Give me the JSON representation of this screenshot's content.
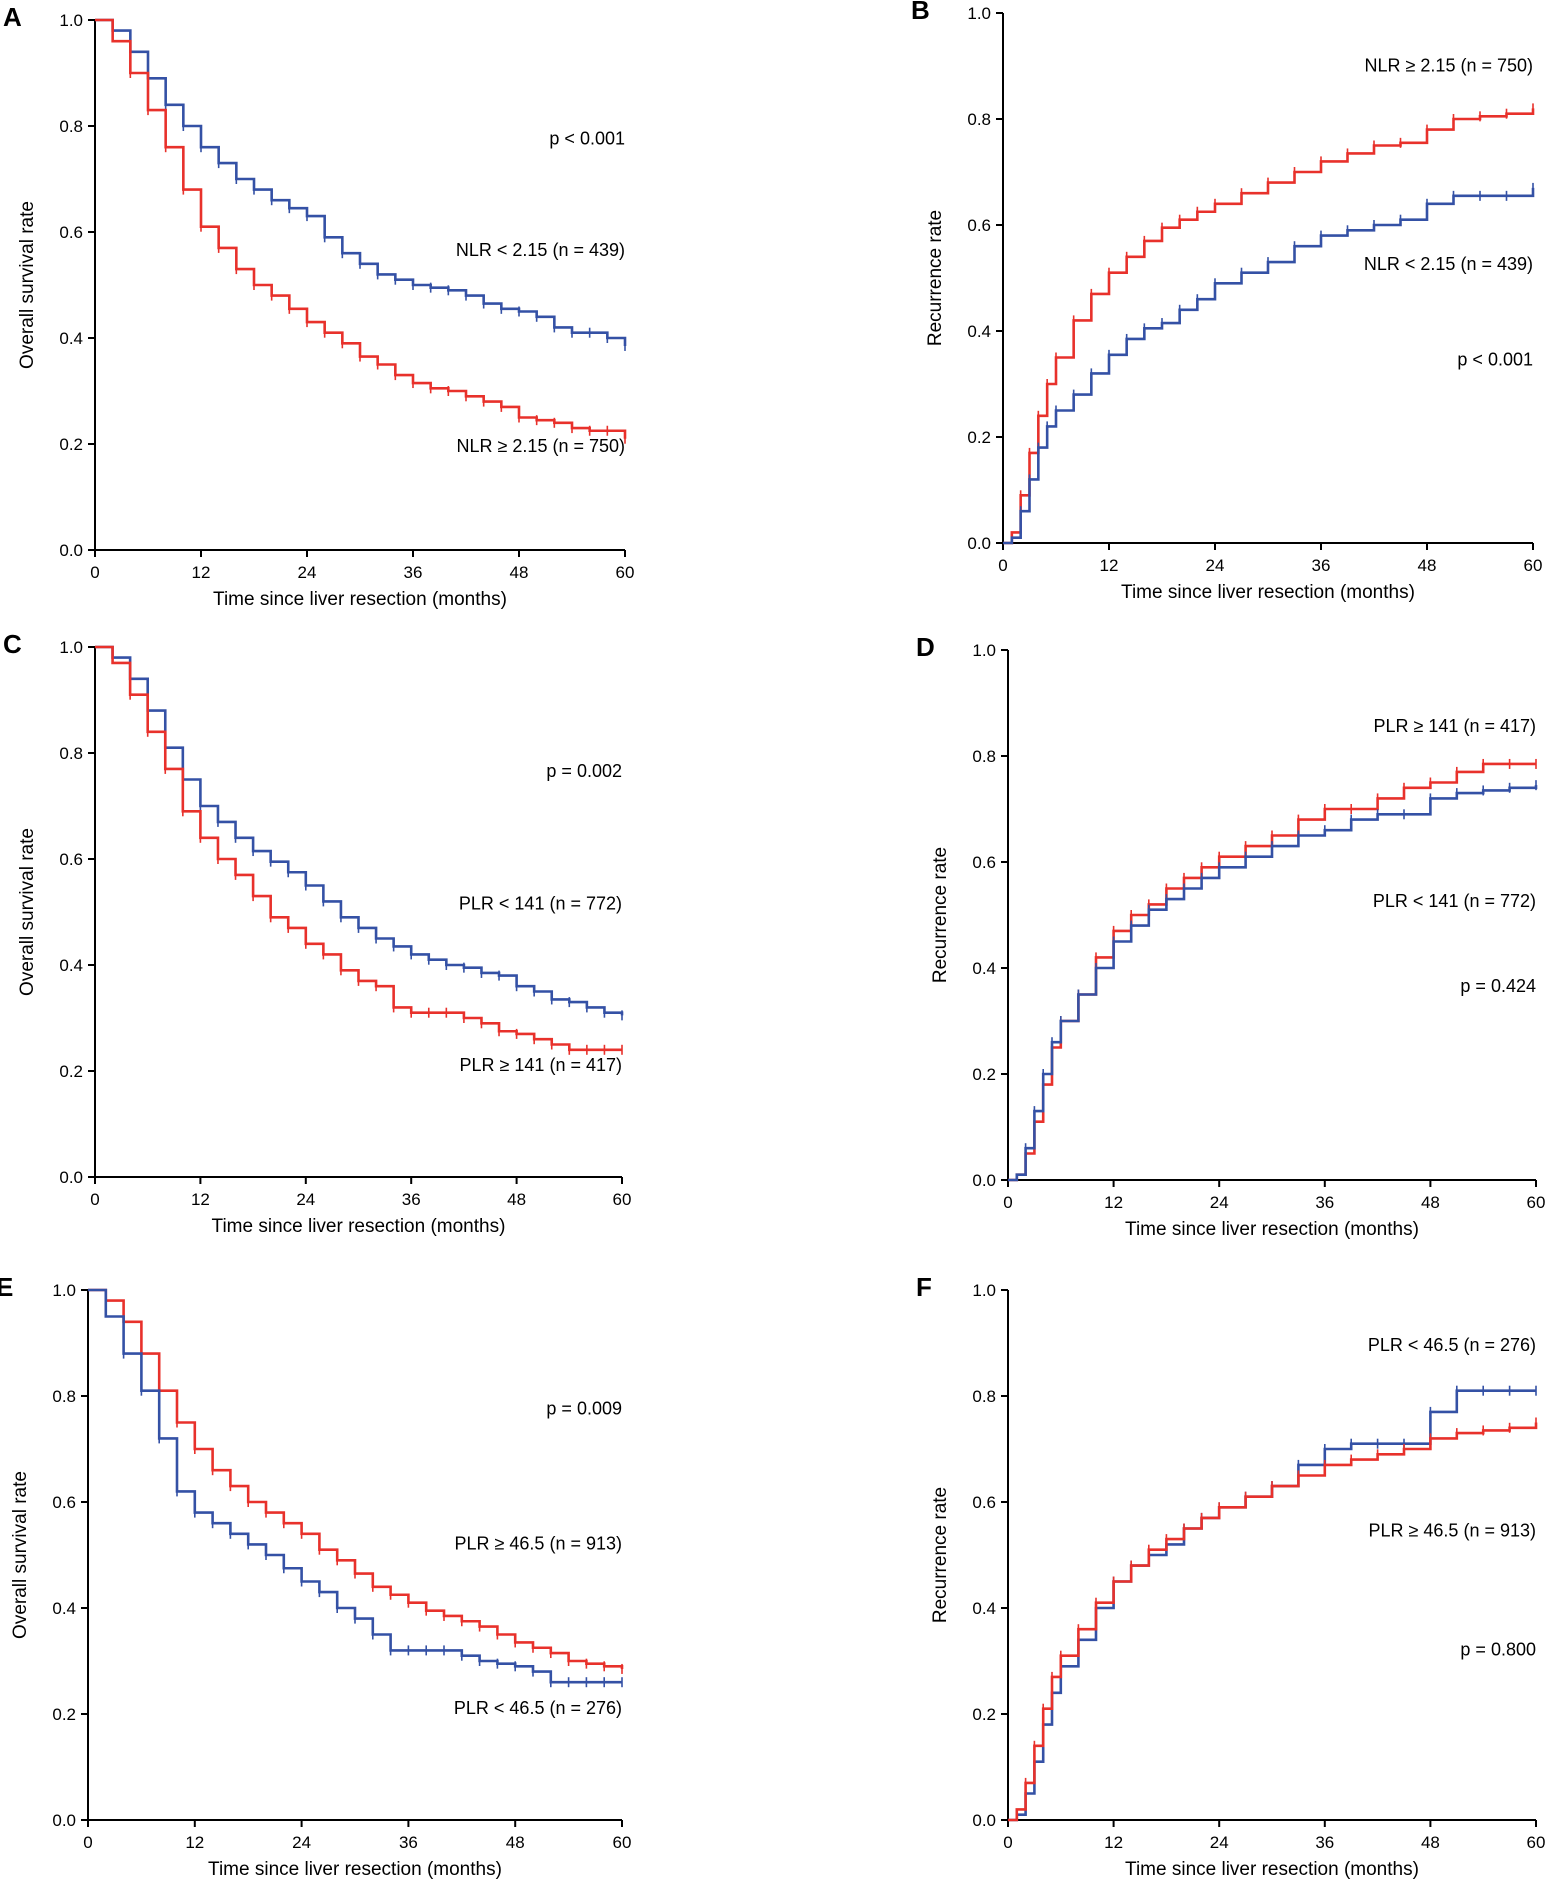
{
  "colors": {
    "red": "#e8312b",
    "blue": "#3451a5"
  },
  "chart_data": [
    {
      "panel": "A",
      "type": "line",
      "step": true,
      "xlabel": "Time since liver resection (months)",
      "ylabel": "Overall survival rate",
      "xlim": [
        0,
        60
      ],
      "ylim": [
        0,
        1
      ],
      "xticks": [
        "0",
        "12",
        "24",
        "36",
        "48",
        "60"
      ],
      "yticks": [
        "0.0",
        "0.2",
        "0.4",
        "0.6",
        "0.8",
        "1.0"
      ],
      "pvalue": "p < 0.001",
      "series": [
        {
          "name": "NLR < 2.15 (n = 439)",
          "color": "blue",
          "x": [
            0,
            2,
            4,
            6,
            8,
            10,
            12,
            14,
            16,
            18,
            20,
            22,
            24,
            26,
            28,
            30,
            32,
            34,
            36,
            38,
            40,
            42,
            44,
            46,
            48,
            50,
            52,
            54,
            56,
            58,
            60
          ],
          "y": [
            1.0,
            0.98,
            0.94,
            0.89,
            0.84,
            0.8,
            0.76,
            0.73,
            0.7,
            0.68,
            0.66,
            0.645,
            0.63,
            0.59,
            0.56,
            0.54,
            0.52,
            0.51,
            0.5,
            0.495,
            0.49,
            0.48,
            0.465,
            0.455,
            0.45,
            0.44,
            0.42,
            0.41,
            0.41,
            0.4,
            0.385
          ]
        },
        {
          "name": "NLR ≥ 2.15 (n = 750)",
          "color": "red",
          "x": [
            0,
            2,
            4,
            6,
            8,
            10,
            12,
            14,
            16,
            18,
            20,
            22,
            24,
            26,
            28,
            30,
            32,
            34,
            36,
            38,
            40,
            42,
            44,
            46,
            48,
            50,
            52,
            54,
            56,
            58,
            60
          ],
          "y": [
            1.0,
            0.96,
            0.9,
            0.83,
            0.76,
            0.68,
            0.61,
            0.57,
            0.53,
            0.5,
            0.48,
            0.455,
            0.43,
            0.41,
            0.39,
            0.365,
            0.35,
            0.33,
            0.315,
            0.305,
            0.3,
            0.29,
            0.28,
            0.27,
            0.25,
            0.245,
            0.24,
            0.23,
            0.225,
            0.225,
            0.21
          ]
        }
      ]
    },
    {
      "panel": "B",
      "type": "line",
      "step": true,
      "xlabel": "Time since liver resection (months)",
      "ylabel": "Recurrence rate",
      "xlim": [
        0,
        60
      ],
      "ylim": [
        0,
        1
      ],
      "xticks": [
        "0",
        "12",
        "24",
        "36",
        "48",
        "60"
      ],
      "yticks": [
        "0.0",
        "0.2",
        "0.4",
        "0.6",
        "0.8",
        "1.0"
      ],
      "pvalue": "p < 0.001",
      "series": [
        {
          "name": "NLR ≥ 2.15 (n = 750)",
          "color": "red",
          "x": [
            0,
            1,
            2,
            3,
            4,
            5,
            6,
            8,
            10,
            12,
            14,
            16,
            18,
            20,
            22,
            24,
            27,
            30,
            33,
            36,
            39,
            42,
            45,
            48,
            51,
            54,
            57,
            60
          ],
          "y": [
            0,
            0.02,
            0.09,
            0.17,
            0.24,
            0.3,
            0.35,
            0.42,
            0.47,
            0.51,
            0.54,
            0.57,
            0.595,
            0.61,
            0.625,
            0.64,
            0.66,
            0.68,
            0.7,
            0.72,
            0.735,
            0.75,
            0.755,
            0.78,
            0.8,
            0.805,
            0.81,
            0.82
          ]
        },
        {
          "name": "NLR < 2.15 (n = 439)",
          "color": "blue",
          "x": [
            0,
            1,
            2,
            3,
            4,
            5,
            6,
            8,
            10,
            12,
            14,
            16,
            18,
            20,
            22,
            24,
            27,
            30,
            33,
            36,
            39,
            42,
            45,
            48,
            51,
            54,
            57,
            60
          ],
          "y": [
            0,
            0.01,
            0.06,
            0.12,
            0.18,
            0.22,
            0.25,
            0.28,
            0.32,
            0.355,
            0.385,
            0.405,
            0.415,
            0.44,
            0.46,
            0.49,
            0.51,
            0.53,
            0.56,
            0.58,
            0.59,
            0.6,
            0.61,
            0.64,
            0.655,
            0.655,
            0.655,
            0.67
          ]
        }
      ]
    },
    {
      "panel": "C",
      "type": "line",
      "step": true,
      "xlabel": "Time since liver resection (months)",
      "ylabel": "Overall survival rate",
      "xlim": [
        0,
        60
      ],
      "ylim": [
        0,
        1
      ],
      "xticks": [
        "0",
        "12",
        "24",
        "36",
        "48",
        "60"
      ],
      "yticks": [
        "0.0",
        "0.2",
        "0.4",
        "0.6",
        "0.8",
        "1.0"
      ],
      "pvalue": "p = 0.002",
      "series": [
        {
          "name": "PLR < 141 (n = 772)",
          "color": "blue",
          "x": [
            0,
            2,
            4,
            6,
            8,
            10,
            12,
            14,
            16,
            18,
            20,
            22,
            24,
            26,
            28,
            30,
            32,
            34,
            36,
            38,
            40,
            42,
            44,
            46,
            48,
            50,
            52,
            54,
            56,
            58,
            60
          ],
          "y": [
            1.0,
            0.98,
            0.94,
            0.88,
            0.81,
            0.75,
            0.7,
            0.67,
            0.64,
            0.615,
            0.595,
            0.575,
            0.55,
            0.52,
            0.49,
            0.47,
            0.45,
            0.435,
            0.42,
            0.41,
            0.4,
            0.395,
            0.385,
            0.38,
            0.36,
            0.35,
            0.335,
            0.33,
            0.32,
            0.31,
            0.305
          ]
        },
        {
          "name": "PLR ≥ 141 (n = 417)",
          "color": "red",
          "x": [
            0,
            2,
            4,
            6,
            8,
            10,
            12,
            14,
            16,
            18,
            20,
            22,
            24,
            26,
            28,
            30,
            32,
            34,
            36,
            38,
            40,
            42,
            44,
            46,
            48,
            50,
            52,
            54,
            56,
            58,
            60
          ],
          "y": [
            1.0,
            0.97,
            0.91,
            0.84,
            0.77,
            0.69,
            0.64,
            0.6,
            0.57,
            0.53,
            0.49,
            0.47,
            0.44,
            0.42,
            0.39,
            0.37,
            0.36,
            0.32,
            0.31,
            0.31,
            0.31,
            0.3,
            0.29,
            0.275,
            0.27,
            0.26,
            0.25,
            0.24,
            0.24,
            0.24,
            0.24
          ]
        }
      ]
    },
    {
      "panel": "D",
      "type": "line",
      "step": true,
      "xlabel": "Time since liver resection (months)",
      "ylabel": "Recurrence rate",
      "xlim": [
        0,
        60
      ],
      "ylim": [
        0,
        1
      ],
      "xticks": [
        "0",
        "12",
        "24",
        "36",
        "48",
        "60"
      ],
      "yticks": [
        "0.0",
        "0.2",
        "0.4",
        "0.6",
        "0.8",
        "1.0"
      ],
      "pvalue": "p = 0.424",
      "series": [
        {
          "name": "PLR ≥ 141 (n = 417)",
          "color": "red",
          "x": [
            0,
            1,
            2,
            3,
            4,
            5,
            6,
            8,
            10,
            12,
            14,
            16,
            18,
            20,
            22,
            24,
            27,
            30,
            33,
            36,
            39,
            42,
            45,
            48,
            51,
            54,
            57,
            60
          ],
          "y": [
            0,
            0.01,
            0.05,
            0.11,
            0.18,
            0.25,
            0.3,
            0.35,
            0.42,
            0.47,
            0.5,
            0.52,
            0.55,
            0.57,
            0.59,
            0.61,
            0.63,
            0.65,
            0.68,
            0.7,
            0.7,
            0.72,
            0.74,
            0.75,
            0.77,
            0.785,
            0.785,
            0.785
          ]
        },
        {
          "name": "PLR < 141 (n = 772)",
          "color": "blue",
          "x": [
            0,
            1,
            2,
            3,
            4,
            5,
            6,
            8,
            10,
            12,
            14,
            16,
            18,
            20,
            22,
            24,
            27,
            30,
            33,
            36,
            39,
            42,
            45,
            48,
            51,
            54,
            57,
            60
          ],
          "y": [
            0,
            0.01,
            0.06,
            0.13,
            0.2,
            0.26,
            0.3,
            0.35,
            0.4,
            0.45,
            0.48,
            0.51,
            0.53,
            0.55,
            0.57,
            0.59,
            0.61,
            0.63,
            0.65,
            0.66,
            0.68,
            0.69,
            0.69,
            0.72,
            0.73,
            0.735,
            0.74,
            0.745
          ]
        }
      ]
    },
    {
      "panel": "E",
      "type": "line",
      "step": true,
      "xlabel": "Time since liver resection (months)",
      "ylabel": "Overall survival rate",
      "xlim": [
        0,
        60
      ],
      "ylim": [
        0,
        1
      ],
      "xticks": [
        "0",
        "12",
        "24",
        "36",
        "48",
        "60"
      ],
      "yticks": [
        "0.0",
        "0.2",
        "0.4",
        "0.6",
        "0.8",
        "1.0"
      ],
      "pvalue": "p = 0.009",
      "series": [
        {
          "name": "PLR ≥ 46.5 (n = 913)",
          "color": "red",
          "x": [
            0,
            2,
            4,
            6,
            8,
            10,
            12,
            14,
            16,
            18,
            20,
            22,
            24,
            26,
            28,
            30,
            32,
            34,
            36,
            38,
            40,
            42,
            44,
            46,
            48,
            50,
            52,
            54,
            56,
            58,
            60
          ],
          "y": [
            1.0,
            0.98,
            0.94,
            0.88,
            0.81,
            0.75,
            0.7,
            0.66,
            0.63,
            0.6,
            0.58,
            0.56,
            0.54,
            0.51,
            0.49,
            0.465,
            0.44,
            0.425,
            0.41,
            0.395,
            0.385,
            0.375,
            0.365,
            0.35,
            0.335,
            0.325,
            0.315,
            0.3,
            0.295,
            0.29,
            0.285
          ]
        },
        {
          "name": "PLR < 46.5 (n = 276)",
          "color": "blue",
          "x": [
            0,
            2,
            4,
            6,
            8,
            10,
            12,
            14,
            16,
            18,
            20,
            22,
            24,
            26,
            28,
            30,
            32,
            34,
            36,
            38,
            40,
            42,
            44,
            46,
            48,
            50,
            52,
            54,
            56,
            58,
            60
          ],
          "y": [
            1.0,
            0.95,
            0.88,
            0.81,
            0.72,
            0.62,
            0.58,
            0.56,
            0.54,
            0.52,
            0.5,
            0.475,
            0.45,
            0.43,
            0.4,
            0.38,
            0.35,
            0.32,
            0.32,
            0.32,
            0.32,
            0.31,
            0.3,
            0.295,
            0.29,
            0.28,
            0.26,
            0.26,
            0.26,
            0.26,
            0.26
          ]
        }
      ]
    },
    {
      "panel": "F",
      "type": "line",
      "step": true,
      "xlabel": "Time since liver resection (months)",
      "ylabel": "Recurrence rate",
      "xlim": [
        0,
        60
      ],
      "ylim": [
        0,
        1
      ],
      "xticks": [
        "0",
        "12",
        "24",
        "36",
        "48",
        "60"
      ],
      "yticks": [
        "0.0",
        "0.2",
        "0.4",
        "0.6",
        "0.8",
        "1.0"
      ],
      "pvalue": "p = 0.800",
      "series": [
        {
          "name": "PLR < 46.5 (n = 276)",
          "color": "blue",
          "x": [
            0,
            1,
            2,
            3,
            4,
            5,
            6,
            8,
            10,
            12,
            14,
            16,
            18,
            20,
            22,
            24,
            27,
            30,
            33,
            36,
            39,
            42,
            45,
            48,
            51,
            54,
            57,
            60
          ],
          "y": [
            0,
            0.01,
            0.05,
            0.11,
            0.18,
            0.24,
            0.29,
            0.34,
            0.4,
            0.45,
            0.48,
            0.5,
            0.52,
            0.55,
            0.57,
            0.59,
            0.61,
            0.63,
            0.67,
            0.7,
            0.71,
            0.71,
            0.71,
            0.77,
            0.81,
            0.81,
            0.81,
            0.81
          ]
        },
        {
          "name": "PLR ≥ 46.5 (n = 913)",
          "color": "red",
          "x": [
            0,
            1,
            2,
            3,
            4,
            5,
            6,
            8,
            10,
            12,
            14,
            16,
            18,
            20,
            22,
            24,
            27,
            30,
            33,
            36,
            39,
            42,
            45,
            48,
            51,
            54,
            57,
            60
          ],
          "y": [
            0,
            0.02,
            0.07,
            0.14,
            0.21,
            0.27,
            0.31,
            0.36,
            0.41,
            0.45,
            0.48,
            0.51,
            0.53,
            0.55,
            0.57,
            0.59,
            0.61,
            0.63,
            0.65,
            0.67,
            0.68,
            0.69,
            0.7,
            0.72,
            0.73,
            0.735,
            0.74,
            0.75
          ]
        }
      ]
    }
  ]
}
